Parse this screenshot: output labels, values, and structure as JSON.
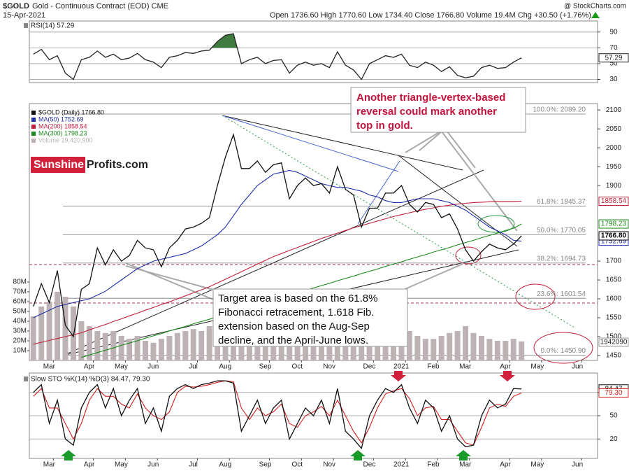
{
  "header": {
    "symbol": "$GOLD",
    "name": "Gold - Continuous Contract (EOD) CME",
    "date": "15-Apr-2021",
    "quote": "Open 1736.60 High 1770.60 Low 1734.40 Close 1766.80 Volume 19.4M Chg +30.50 (+1.76%)",
    "watermark": "@ StockCharts.com"
  },
  "logo": {
    "left": "Sunshine",
    "right": "Profits.com"
  },
  "reversal_note": [
    "Another triangle-vertex-based",
    "reversal could mark another",
    "top in gold."
  ],
  "target_note": [
    "Target area is based on the 61.8%",
    "Fibonacci retracement, 1.618 Fib.",
    "extension based on the Aug-Sep",
    "decline, and the April-June lows."
  ],
  "volume_box": "1942090",
  "chart_data": [
    {
      "type": "line",
      "title": "RSI(14) 57.29",
      "ylim": [
        26,
        104
      ],
      "yticks": [
        90,
        70,
        50,
        30
      ],
      "grid": true,
      "fill_above": 70,
      "fill_color": "#3f7a3f",
      "series": [
        {
          "color": "#222",
          "values": [
            62,
            68,
            55,
            60,
            38,
            30,
            55,
            58,
            66,
            58,
            62,
            55,
            57,
            63,
            55,
            52,
            45,
            58,
            60,
            64,
            63,
            66,
            67,
            78,
            86,
            88,
            50,
            55,
            58,
            50,
            54,
            55,
            38,
            48,
            52,
            48,
            50,
            45,
            65,
            48,
            42,
            30,
            50,
            55,
            60,
            58,
            62,
            48,
            45,
            52,
            48,
            40,
            46,
            35,
            32,
            34,
            45,
            48,
            44,
            45,
            52,
            57.29,
            null,
            null,
            null,
            null,
            null,
            null,
            null,
            null,
            null
          ]
        }
      ],
      "end_labels": [
        {
          "value": 57.29,
          "label": "57.29",
          "color": "#222"
        }
      ]
    },
    {
      "type": "line",
      "legend": "upper left",
      "categories": [
        null,
        null,
        null,
        "Mar",
        null,
        null,
        null,
        null,
        "Apr",
        null,
        null,
        null,
        "May",
        null,
        null,
        null,
        "Jun",
        null,
        null,
        null,
        null,
        "Jul",
        null,
        null,
        null,
        "Aug",
        null,
        null,
        null,
        null,
        "Sep",
        null,
        null,
        null,
        "Oct",
        null,
        null,
        null,
        "Nov",
        null,
        null,
        null,
        null,
        "Dec",
        null,
        null,
        null,
        "2021",
        null,
        null,
        null,
        "Feb",
        null,
        null,
        null,
        "Mar",
        null,
        null,
        null,
        null,
        "Apr",
        null,
        null,
        null,
        "May",
        null,
        null,
        null,
        null,
        "Jun",
        null
      ],
      "ylim": [
        1437,
        2117
      ],
      "yticks": [
        2100,
        2050,
        2000,
        1950,
        1900,
        1700,
        1650,
        1600,
        1550,
        1500,
        1450
      ],
      "y2lim": [
        0,
        262
      ],
      "y2ticks": [
        {
          "value": 80,
          "label": "80M"
        },
        {
          "value": 70,
          "label": "70M"
        },
        {
          "value": 60,
          "label": "60M"
        },
        {
          "value": 50,
          "label": "50M"
        },
        {
          "value": 40,
          "label": "40M"
        },
        {
          "value": 30,
          "label": "30M"
        },
        {
          "value": 20,
          "label": "20M"
        },
        {
          "value": 10,
          "label": "10M"
        }
      ],
      "series": [
        {
          "name": "Volume 19,420,900",
          "type": "bar",
          "axis": "y2",
          "color": "#bdb3b5",
          "values": [
            45,
            55,
            60,
            70,
            65,
            55,
            40,
            35,
            30,
            28,
            30,
            25,
            22,
            25,
            20,
            18,
            22,
            25,
            28,
            30,
            32,
            30,
            35,
            45,
            55,
            50,
            40,
            30,
            28,
            25,
            25,
            28,
            30,
            25,
            22,
            20,
            22,
            20,
            35,
            30,
            25,
            30,
            28,
            25,
            22,
            18,
            20,
            30,
            25,
            22,
            22,
            25,
            28,
            30,
            35,
            28,
            25,
            22,
            20,
            20,
            22,
            19.42,
            null,
            null,
            null,
            null,
            null,
            null,
            null,
            null,
            null
          ]
        },
        {
          "name": "MA(300) 1798.23",
          "color": "#1a8a1a",
          "values": [
            null,
            null,
            null,
            null,
            null,
            null,
            1445,
            1451,
            1458,
            1464,
            1470,
            1477,
            1483,
            1489,
            1496,
            1502,
            1508,
            1515,
            1521,
            1527,
            1534,
            1540,
            1546,
            1553,
            1559,
            1565,
            1572,
            1578,
            1584,
            1591,
            1597,
            1603,
            1610,
            1616,
            1622,
            1629,
            1635,
            1641,
            1648,
            1654,
            1660,
            1667,
            1673,
            1679,
            1686,
            1692,
            1698,
            1705,
            1711,
            1717,
            1724,
            1730,
            1736,
            1743,
            1749,
            1755,
            1762,
            1768,
            1774,
            1781,
            1787,
            1798.23,
            null,
            null,
            null,
            null,
            null,
            null,
            null,
            null,
            null
          ]
        },
        {
          "name": "MA(200) 1858.54",
          "color": "#c0203a",
          "values": [
            1480,
            1485,
            1490,
            1495,
            1500,
            1505,
            1510,
            1518,
            1525,
            1532,
            1540,
            1547,
            1555,
            1562,
            1570,
            1577,
            1585,
            1592,
            1600,
            1608,
            1616,
            1624,
            1632,
            1642,
            1652,
            1662,
            1672,
            1682,
            1692,
            1702,
            1712,
            1720,
            1728,
            1736,
            1744,
            1752,
            1760,
            1767,
            1774,
            1781,
            1788,
            1794,
            1800,
            1806,
            1812,
            1818,
            1823,
            1828,
            1833,
            1837,
            1841,
            1845,
            1848,
            1851,
            1853,
            1855,
            1856,
            1857,
            1858,
            1858,
            1858,
            1858.54,
            null,
            null,
            null,
            null,
            null,
            null,
            null,
            null,
            null
          ]
        },
        {
          "name": "MA(50) 1752.69",
          "color": "#1f2fa8",
          "values": [
            1550,
            1560,
            1570,
            1580,
            1585,
            1590,
            1595,
            1600,
            1610,
            1620,
            1635,
            1650,
            1665,
            1680,
            1690,
            1700,
            1705,
            1710,
            1715,
            1720,
            1730,
            1740,
            1755,
            1770,
            1790,
            1820,
            1850,
            1875,
            1900,
            1915,
            1930,
            1935,
            1940,
            1935,
            1925,
            1915,
            1905,
            1900,
            1895,
            1895,
            1890,
            1885,
            1875,
            1870,
            1860,
            1855,
            1855,
            1860,
            1865,
            1865,
            1865,
            1860,
            1855,
            1845,
            1835,
            1820,
            1805,
            1790,
            1780,
            1770,
            1755,
            1752.69,
            null,
            null,
            null,
            null,
            null,
            null,
            null,
            null,
            null
          ]
        },
        {
          "name": "$GOLD (Daily) 1766.80",
          "color": "#111",
          "values": [
            1580,
            1640,
            1590,
            1675,
            1530,
            1500,
            1625,
            1640,
            1735,
            1690,
            1730,
            1700,
            1715,
            1755,
            1735,
            1730,
            1685,
            1735,
            1755,
            1785,
            1790,
            1800,
            1815,
            1900,
            1975,
            2035,
            1945,
            1945,
            1965,
            1935,
            1955,
            1960,
            1865,
            1900,
            1920,
            1900,
            1905,
            1880,
            1950,
            1890,
            1875,
            1790,
            1840,
            1840,
            1880,
            1880,
            1900,
            1850,
            1830,
            1855,
            1850,
            1815,
            1825,
            1785,
            1730,
            1700,
            1725,
            1745,
            1735,
            1730,
            1745,
            1766.8,
            null,
            null,
            null,
            null,
            null,
            null,
            null,
            null,
            null
          ]
        }
      ],
      "fib_levels": [
        {
          "value": 2089.2,
          "label": "100.0%: 2089.20"
        },
        {
          "value": 1845.37,
          "label": "61.8%: 1845.37"
        },
        {
          "value": 1770.05,
          "label": "50.0%: 1770.05"
        },
        {
          "value": 1694.73,
          "label": "38.2%: 1694.73"
        },
        {
          "value": 1601.54,
          "label": "23.6%: 1601.54"
        },
        {
          "value": 1450.9,
          "label": "0.0%: 1450.90"
        }
      ],
      "end_labels": [
        {
          "value": 1858.54,
          "label": "1858.54",
          "color": "#c0203a"
        },
        {
          "value": 1798.23,
          "label": "1798.23",
          "color": "#1a8a1a"
        },
        {
          "value": 1752.69,
          "label": "1752.69",
          "color": "#1f2fa8"
        },
        {
          "value": 1766.8,
          "label": "1766.80",
          "color": "#000",
          "bold": true
        }
      ]
    },
    {
      "type": "line",
      "title": "Slow STO %K(14) %D(3) 84.47, 79.30",
      "categories": [
        null,
        null,
        null,
        "Mar",
        null,
        null,
        null,
        null,
        "Apr",
        null,
        null,
        null,
        "May",
        null,
        null,
        null,
        "Jun",
        null,
        null,
        null,
        null,
        "Jul",
        null,
        null,
        null,
        "Aug",
        null,
        null,
        null,
        null,
        "Sep",
        null,
        null,
        null,
        "Oct",
        null,
        null,
        null,
        "Nov",
        null,
        null,
        null,
        null,
        "Dec",
        null,
        null,
        null,
        "2021",
        null,
        null,
        null,
        "Feb",
        null,
        null,
        null,
        "Mar",
        null,
        null,
        null,
        null,
        "Apr",
        null,
        null,
        null,
        "May",
        null,
        null,
        null,
        null,
        "Jun",
        null
      ],
      "ylim": [
        -5,
        105
      ],
      "yticks": [
        80,
        50,
        20
      ],
      "grid": true,
      "series": [
        {
          "color": "#d02020",
          "values": [
            75,
            85,
            60,
            60,
            40,
            20,
            40,
            70,
            85,
            75,
            75,
            65,
            60,
            78,
            60,
            50,
            45,
            55,
            80,
            88,
            87,
            88,
            90,
            93,
            95,
            94,
            60,
            45,
            60,
            50,
            55,
            65,
            40,
            35,
            50,
            55,
            62,
            50,
            70,
            50,
            30,
            15,
            35,
            60,
            78,
            82,
            85,
            72,
            50,
            60,
            62,
            45,
            45,
            30,
            15,
            12,
            35,
            60,
            65,
            62,
            75,
            79.3,
            null,
            null,
            null,
            null,
            null,
            null,
            null,
            null,
            null
          ]
        },
        {
          "color": "#111",
          "values": [
            80,
            90,
            40,
            70,
            20,
            12,
            60,
            80,
            90,
            60,
            85,
            50,
            70,
            85,
            40,
            60,
            30,
            75,
            85,
            90,
            85,
            90,
            92,
            95,
            95,
            92,
            30,
            50,
            70,
            40,
            60,
            70,
            20,
            40,
            60,
            50,
            70,
            40,
            85,
            30,
            20,
            8,
            50,
            70,
            85,
            80,
            90,
            60,
            40,
            70,
            60,
            30,
            50,
            20,
            10,
            12,
            50,
            70,
            60,
            65,
            85,
            84.47,
            null,
            null,
            null,
            null,
            null,
            null,
            null,
            null,
            null
          ]
        }
      ],
      "end_labels": [
        {
          "value": 84.47,
          "label": "84.47",
          "color": "#111"
        },
        {
          "value": 79.3,
          "label": "79.30",
          "color": "#d02020"
        }
      ]
    }
  ]
}
